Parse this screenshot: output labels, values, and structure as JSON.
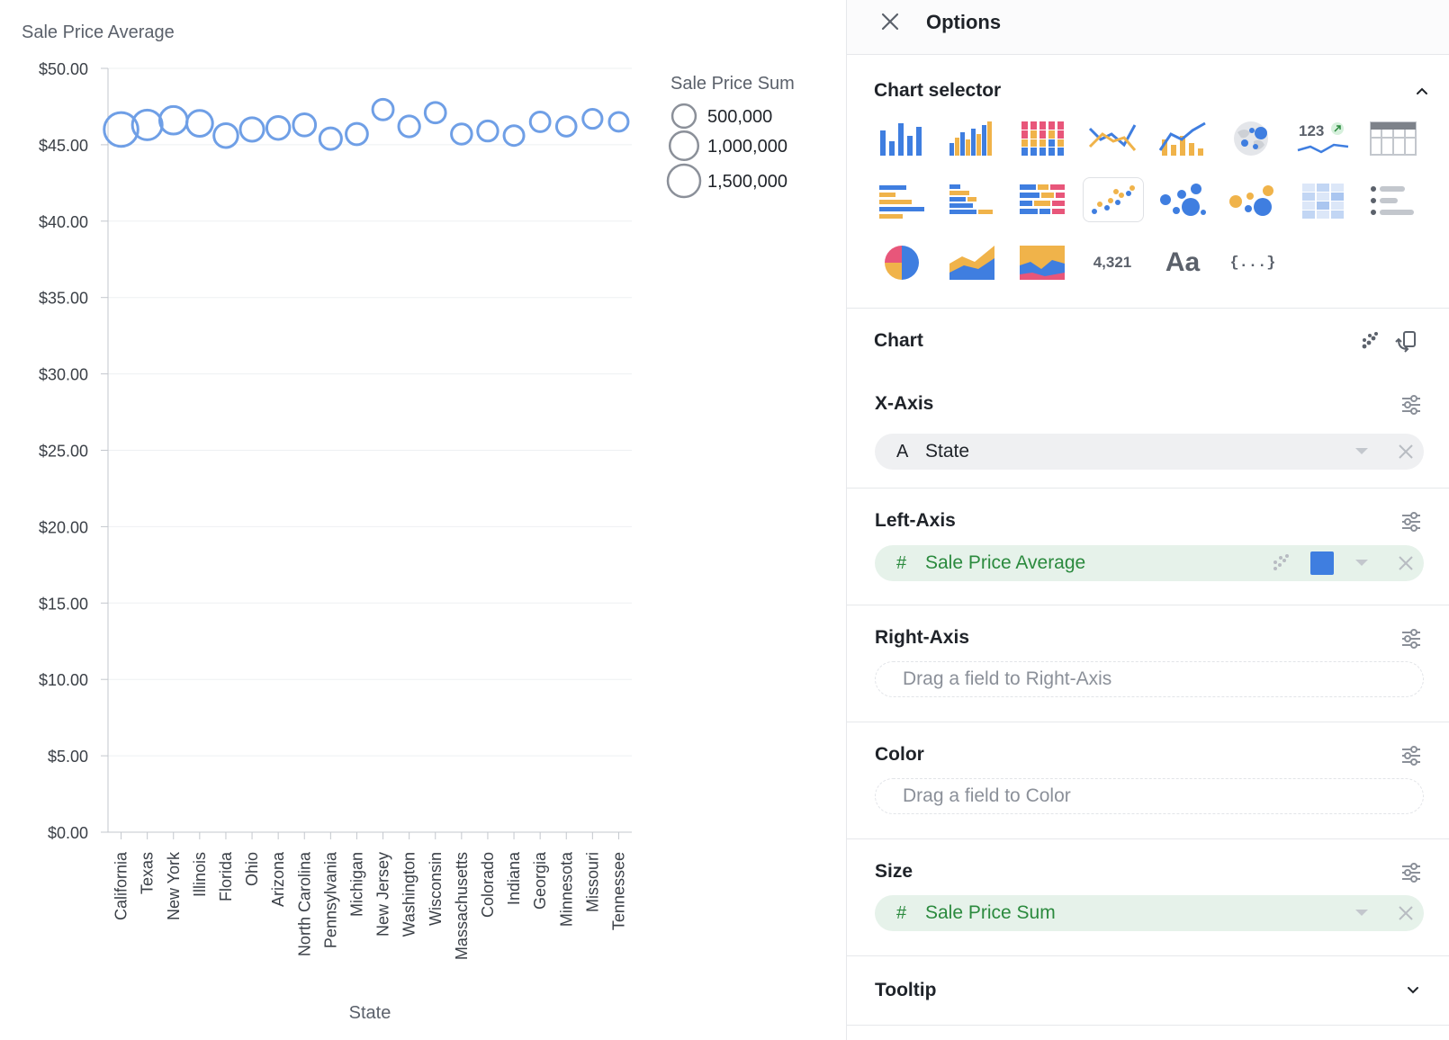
{
  "chart_data": {
    "type": "scatter",
    "title": "Sale Price Average",
    "xlabel": "State",
    "ylabel": "",
    "categories": [
      "California",
      "Texas",
      "New York",
      "Illinois",
      "Florida",
      "Ohio",
      "Arizona",
      "North Carolina",
      "Pennsylvania",
      "Michigan",
      "New Jersey",
      "Washington",
      "Wisconsin",
      "Massachusetts",
      "Colorado",
      "Indiana",
      "Georgia",
      "Minnesota",
      "Missouri",
      "Tennessee"
    ],
    "values": [
      46.0,
      46.3,
      46.6,
      46.4,
      45.6,
      46.0,
      46.1,
      46.3,
      45.4,
      45.7,
      47.3,
      46.2,
      47.1,
      45.7,
      45.9,
      45.6,
      46.5,
      46.2,
      46.7,
      46.5
    ],
    "size_values": [
      1700000,
      1150000,
      900000,
      730000,
      550000,
      520000,
      470000,
      420000,
      380000,
      360000,
      310000,
      330000,
      300000,
      290000,
      280000,
      260000,
      250000,
      240000,
      220000,
      210000
    ],
    "ylim": [
      0,
      50
    ],
    "y_ticks": [
      "$0.00",
      "$5.00",
      "$10.00",
      "$15.00",
      "$20.00",
      "$25.00",
      "$30.00",
      "$35.00",
      "$40.00",
      "$45.00",
      "$50.00"
    ],
    "grid": true,
    "legend": {
      "title": "Sale Price Sum",
      "position": "top-right",
      "items": [
        {
          "label": "500,000",
          "value": 500000
        },
        {
          "label": "1,000,000",
          "value": 1000000
        },
        {
          "label": "1,500,000",
          "value": 1500000
        }
      ]
    },
    "marker_color": "#6f9fe6"
  },
  "panel": {
    "title": "Options",
    "chart_selector": {
      "title": "Chart selector",
      "number_tile": "4,321",
      "text_tile": "Aa",
      "json_tile": "{...}",
      "kpi_tile": "123",
      "selected": "scatter"
    },
    "chart_section": {
      "title": "Chart"
    },
    "fields": {
      "x_axis": {
        "label": "X-Axis",
        "type_icon": "A",
        "value": "State"
      },
      "left_axis": {
        "label": "Left-Axis",
        "type_icon": "#",
        "value": "Sale Price Average",
        "color": "#3f7ee0"
      },
      "right_axis": {
        "label": "Right-Axis",
        "placeholder": "Drag a field to Right-Axis"
      },
      "color": {
        "label": "Color",
        "placeholder": "Drag a field to Color"
      },
      "size": {
        "label": "Size",
        "type_icon": "#",
        "value": "Sale Price Sum"
      },
      "tooltip": {
        "label": "Tooltip"
      }
    }
  }
}
